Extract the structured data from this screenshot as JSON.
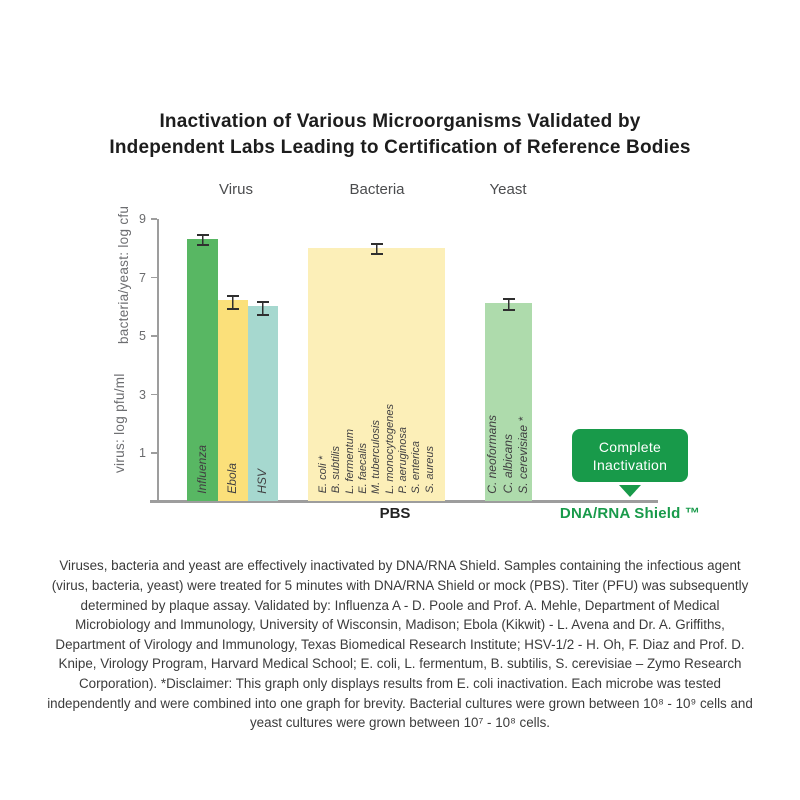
{
  "title": {
    "line1": "Inactivation of Various Microorganisms Validated by",
    "line2": "Independent Labs Leading to Certification of Reference Bodies"
  },
  "chart_data": {
    "type": "bar",
    "title": "Inactivation of Various Microorganisms Validated by Independent Labs Leading to Certification of Reference Bodies",
    "ylabel_top": "bacteria/yeast: log cfu",
    "ylabel_bottom": "virus: log pfu/ml",
    "yticks": [
      9,
      7,
      5,
      3,
      1
    ],
    "ylim": [
      0,
      9
    ],
    "grid": false,
    "groups": [
      {
        "label": "Virus",
        "bars": [
          {
            "label": "Influenza",
            "value": 8.3,
            "error": 0.1,
            "color": "#58b763"
          },
          {
            "label": "Ebola",
            "value": 6.2,
            "error": 0.15,
            "color": "#fbe07a"
          },
          {
            "label": "HSV",
            "value": 6.0,
            "error": 0.15,
            "color": "#a6d8cf"
          }
        ]
      },
      {
        "label": "Bacteria",
        "bars": [
          {
            "labels": [
              "E. coli *",
              "B. subtilis",
              "L. fermentum",
              "E. faecalis",
              "M. tuberculosis",
              "L. monocytogenes",
              "P. aeruginosa",
              "S. enterica",
              "S. aureus"
            ],
            "value": 8.0,
            "error": 0.1,
            "color": "#fcefb8"
          }
        ]
      },
      {
        "label": "Yeast",
        "bars": [
          {
            "labels": [
              "C. neoformans",
              "C. albicans",
              "S. cerevisiae *"
            ],
            "value": 6.1,
            "error": 0.12,
            "color": "#aedbac"
          }
        ]
      }
    ],
    "condition_labels": {
      "mock": "PBS",
      "treatment": "DNA/RNA Shield ™"
    },
    "annotation": {
      "line1": "Complete",
      "line2": "Inactivation",
      "color": "#189a4a"
    }
  },
  "colors": {
    "brand_green": "#189a4a",
    "axis_gray": "#9d9d9d",
    "errorbar_dark": "#2f2f2f"
  },
  "caption": "Viruses, bacteria and yeast are effectively inactivated by DNA/RNA Shield. Samples containing the infectious agent (virus, bacteria, yeast) were treated for 5 minutes with DNA/RNA Shield or mock (PBS). Titer (PFU) was subsequently determined by plaque assay. Validated by: Influenza A - D. Poole and Prof. A. Mehle, Department of Medical Microbiology and Immunology, University of Wisconsin, Madison; Ebola (Kikwit) - L. Avena and Dr. A. Griffiths, Department of Virology and Immunology, Texas Biomedical Research Institute; HSV-1/2 - H. Oh, F. Diaz and Prof. D. Knipe, Virology Program, Harvard Medical School; E. coli, L. fermentum, B. subtilis, S. cerevisiae – Zymo Research Corporation). *Disclaimer: This graph only displays results from E. coli inactivation. Each microbe was tested independently and were combined into one graph for brevity. Bacterial cultures were grown between 10⁸ - 10⁹ cells and yeast cultures were grown between 10⁷ - 10⁸ cells."
}
